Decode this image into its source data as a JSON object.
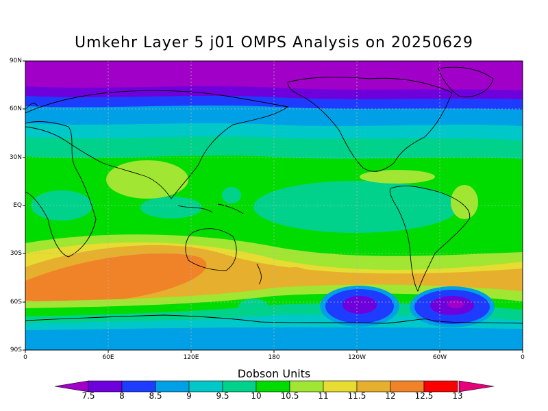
{
  "title": "Umkehr Layer 5 j01 OMPS Analysis on 20250629",
  "colorbar": {
    "title": "Dobson Units",
    "labels": [
      "7.5",
      "8",
      "8.5",
      "9",
      "9.5",
      "10",
      "10.5",
      "11",
      "11.5",
      "12",
      "12.5",
      "13"
    ],
    "colors": [
      "#a000c8",
      "#6e00dc",
      "#1e3cff",
      "#00a0e6",
      "#00c8c8",
      "#00d28c",
      "#00dc00",
      "#a0e632",
      "#e6dc32",
      "#e6af2d",
      "#f08228",
      "#fa0000",
      "#e6007a"
    ]
  },
  "map": {
    "y_ticks": [
      "90N",
      "60N",
      "30N",
      "EQ",
      "30S",
      "60S",
      "90S"
    ],
    "x_ticks": [
      "0",
      "60E",
      "120E",
      "180",
      "120W",
      "60W",
      "0"
    ],
    "lon_range": [
      0,
      360
    ],
    "lat_range": [
      -90,
      90
    ],
    "projection": "cylindrical equidistant",
    "gridlines": "dotted"
  }
}
